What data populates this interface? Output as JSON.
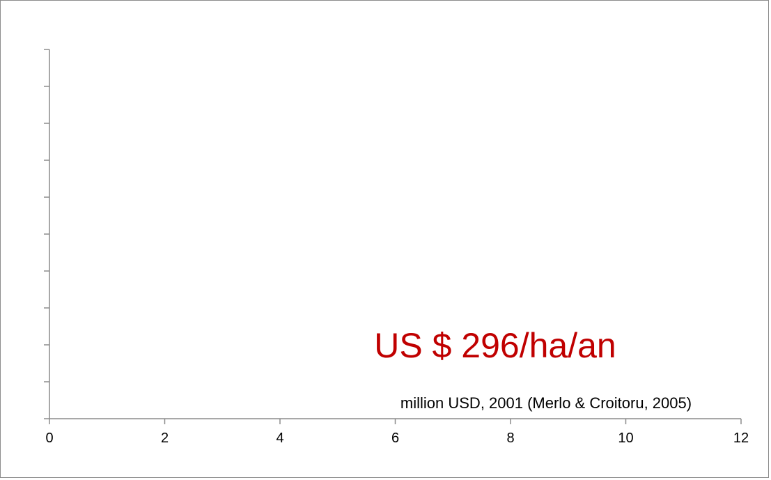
{
  "chart_data": {
    "type": "bar",
    "title": "",
    "xlabel": "",
    "ylabel": "",
    "xlim": [
      0,
      12
    ],
    "x_ticks": [
      0,
      2,
      4,
      6,
      8,
      10,
      12
    ],
    "x_tick_labels": [
      "0",
      "2",
      "4",
      "6",
      "8",
      "10",
      "12"
    ],
    "y_tick_count": 11,
    "grid": false,
    "categories": [],
    "values": [],
    "annotations": [
      {
        "text": "US $ 296/ha/an",
        "color": "#c00000"
      },
      {
        "text": "million USD, 2001 (Merlo & Croitoru, 2005)",
        "color": "#000000"
      }
    ],
    "colors": {
      "axis": "#8c8c8c",
      "frame": "#8c8c8c"
    }
  }
}
